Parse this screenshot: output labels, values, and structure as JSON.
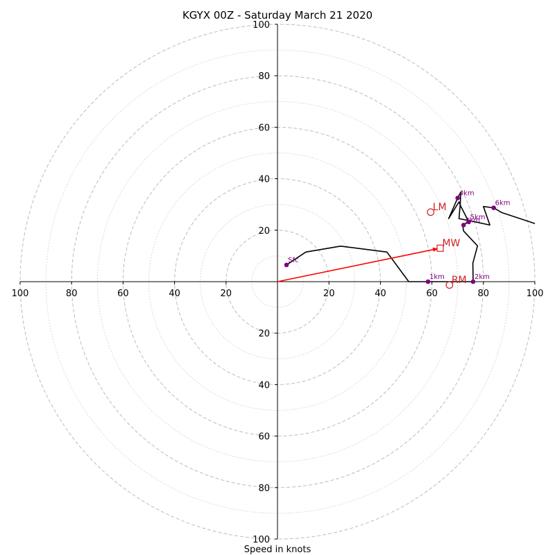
{
  "chart_data": {
    "type": "scatter",
    "title": "KGYX 00Z - Saturday March 21 2020",
    "xlabel": "Speed in knots",
    "ylabel": "",
    "xlim": [
      -100,
      100
    ],
    "ylim": [
      -100,
      100
    ],
    "ring_labels": [
      "20",
      "40",
      "60",
      "80",
      "100"
    ],
    "rings": {
      "dashed": [
        20,
        40,
        60,
        80,
        100
      ],
      "dotted": [
        10,
        30,
        50,
        70,
        90
      ]
    },
    "hodograph_line": {
      "color": "#000000",
      "x": [
        3.5,
        11,
        24.5,
        42.5,
        51,
        58.5,
        76,
        75.9,
        77.7,
        72.3,
        71.9,
        74.3,
        71.2,
        70.5,
        66.5,
        70,
        71.2,
        71,
        70.5,
        75.5,
        82.5,
        80,
        84,
        87,
        100
      ],
      "y": [
        6.5,
        11.5,
        13.8,
        11.5,
        0,
        0,
        0,
        7.2,
        13.9,
        19.7,
        22,
        23.2,
        29.3,
        31,
        24.5,
        32.5,
        34.8,
        30,
        24.5,
        23.5,
        22,
        29.2,
        28.7,
        26.9,
        22.6
      ]
    },
    "height_markers": [
      {
        "label": "Sfc",
        "x": 3.5,
        "y": 6.5
      },
      {
        "label": "1km",
        "x": 58.5,
        "y": 0
      },
      {
        "label": "2km",
        "x": 76,
        "y": 0
      },
      {
        "label": "3km",
        "x": 72.3,
        "y": 22
      },
      {
        "label": "4km",
        "x": 70,
        "y": 32.5
      },
      {
        "label": "5km",
        "x": 74.3,
        "y": 23.2
      },
      {
        "label": "6km",
        "x": 84,
        "y": 28.7
      }
    ],
    "storm_motion": [
      {
        "label": "LM",
        "x": 59.5,
        "y": 27,
        "marker": "circle"
      },
      {
        "label": "RM",
        "x": 66.8,
        "y": -1.3,
        "marker": "circle"
      },
      {
        "label": "MW",
        "x": 63.2,
        "y": 13,
        "marker": "square"
      }
    ],
    "shear_vector": {
      "x0": 0,
      "y0": 0,
      "x1": 63.2,
      "y1": 13,
      "color": "#ff0000"
    },
    "colors": {
      "markers": "#800080",
      "storm": "#cc2222",
      "rings": "#bbbbbb",
      "line": "#000000"
    },
    "grid": true
  }
}
